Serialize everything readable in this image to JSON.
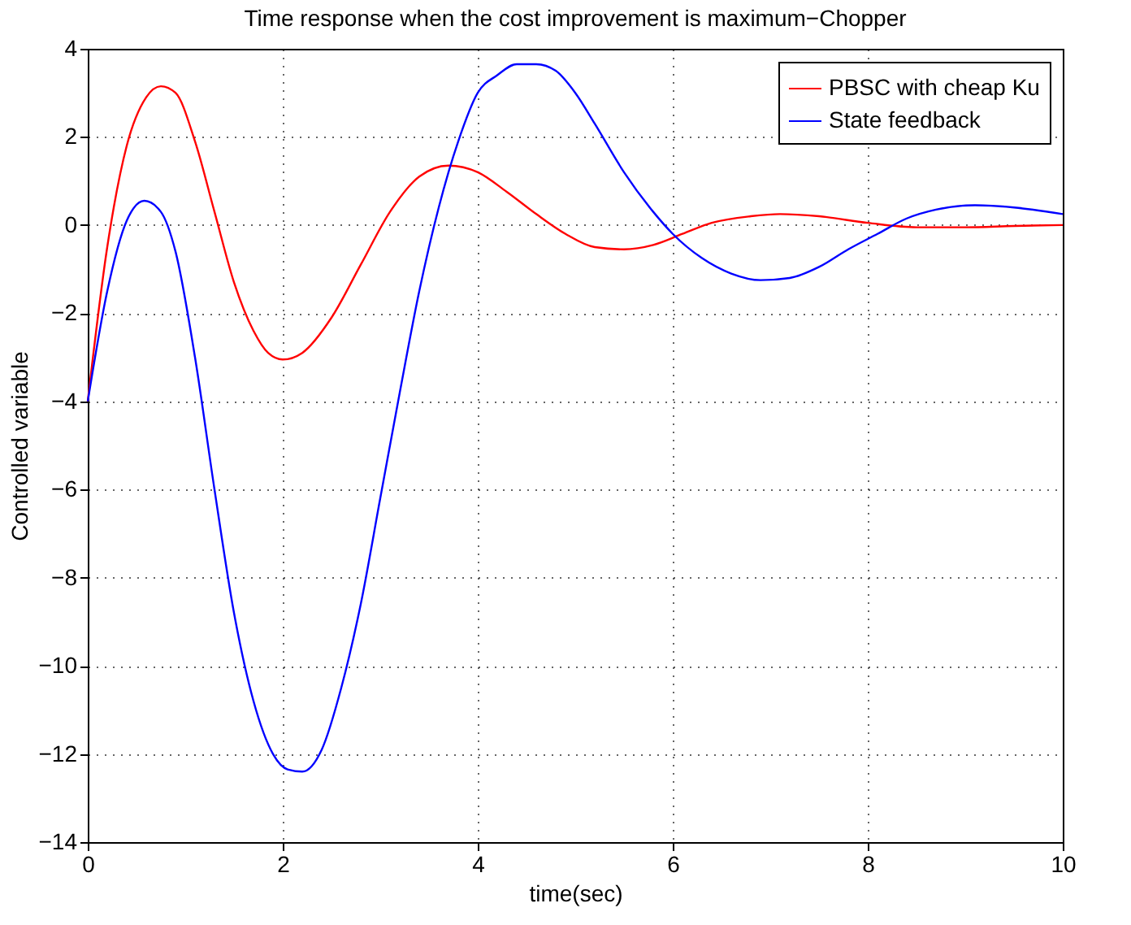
{
  "chart_data": {
    "type": "line",
    "title": "Time response when the cost improvement is maximum−Chopper",
    "xlabel": "time(sec)",
    "ylabel": "Controlled variable",
    "xlim": [
      0,
      10
    ],
    "xticks": [
      0,
      2,
      4,
      6,
      8,
      10
    ],
    "ylim": [
      -14,
      4
    ],
    "yticks": [
      -14,
      -12,
      -10,
      -8,
      -6,
      -4,
      -2,
      0,
      2,
      4
    ],
    "grid": true,
    "legend": "top right",
    "line_style": "solid",
    "marker": "none",
    "series": [
      {
        "name": "PBSC with cheap Ku",
        "color": "#ff0000",
        "x": [
          0,
          0.2,
          0.4,
          0.6,
          0.75,
          0.9,
          1.1,
          1.3,
          1.5,
          1.7,
          1.85,
          2.0,
          2.2,
          2.5,
          2.8,
          3.1,
          3.4,
          3.7,
          4.0,
          4.3,
          4.6,
          4.9,
          5.2,
          5.5,
          5.8,
          6.1,
          6.4,
          6.8,
          7.1,
          7.5,
          8.0,
          8.5,
          9.0,
          9.5,
          10
        ],
        "values": [
          -4,
          -0.5,
          1.8,
          2.9,
          3.15,
          3.0,
          1.9,
          0.3,
          -1.3,
          -2.4,
          -2.9,
          -3.05,
          -2.9,
          -2.1,
          -0.9,
          0.3,
          1.1,
          1.35,
          1.2,
          0.75,
          0.25,
          -0.2,
          -0.5,
          -0.55,
          -0.45,
          -0.2,
          0.05,
          0.2,
          0.25,
          0.2,
          0.05,
          -0.05,
          -0.05,
          -0.02,
          0
        ]
      },
      {
        "name": "State feedback",
        "color": "#0000ff",
        "x": [
          0,
          0.2,
          0.4,
          0.58,
          0.75,
          0.9,
          1.1,
          1.3,
          1.5,
          1.7,
          1.9,
          2.05,
          2.2,
          2.4,
          2.6,
          2.8,
          3.0,
          3.2,
          3.4,
          3.6,
          3.8,
          4.0,
          4.2,
          4.4,
          4.6,
          4.8,
          5.0,
          5.2,
          5.5,
          5.8,
          6.0,
          6.3,
          6.6,
          6.9,
          7.2,
          7.5,
          7.8,
          8.1,
          8.4,
          8.7,
          9.1,
          9.5,
          10
        ],
        "values": [
          -4,
          -1.5,
          0.1,
          0.55,
          0.3,
          -0.6,
          -3,
          -6,
          -8.8,
          -10.8,
          -12,
          -12.35,
          -12.4,
          -11.9,
          -10.5,
          -8.6,
          -6.2,
          -3.8,
          -1.5,
          0.4,
          1.9,
          3.0,
          3.4,
          3.65,
          3.65,
          3.5,
          3.0,
          2.3,
          1.2,
          0.3,
          -0.2,
          -0.75,
          -1.1,
          -1.25,
          -1.2,
          -0.95,
          -0.55,
          -0.2,
          0.15,
          0.35,
          0.45,
          0.4,
          0.25
        ]
      }
    ]
  }
}
